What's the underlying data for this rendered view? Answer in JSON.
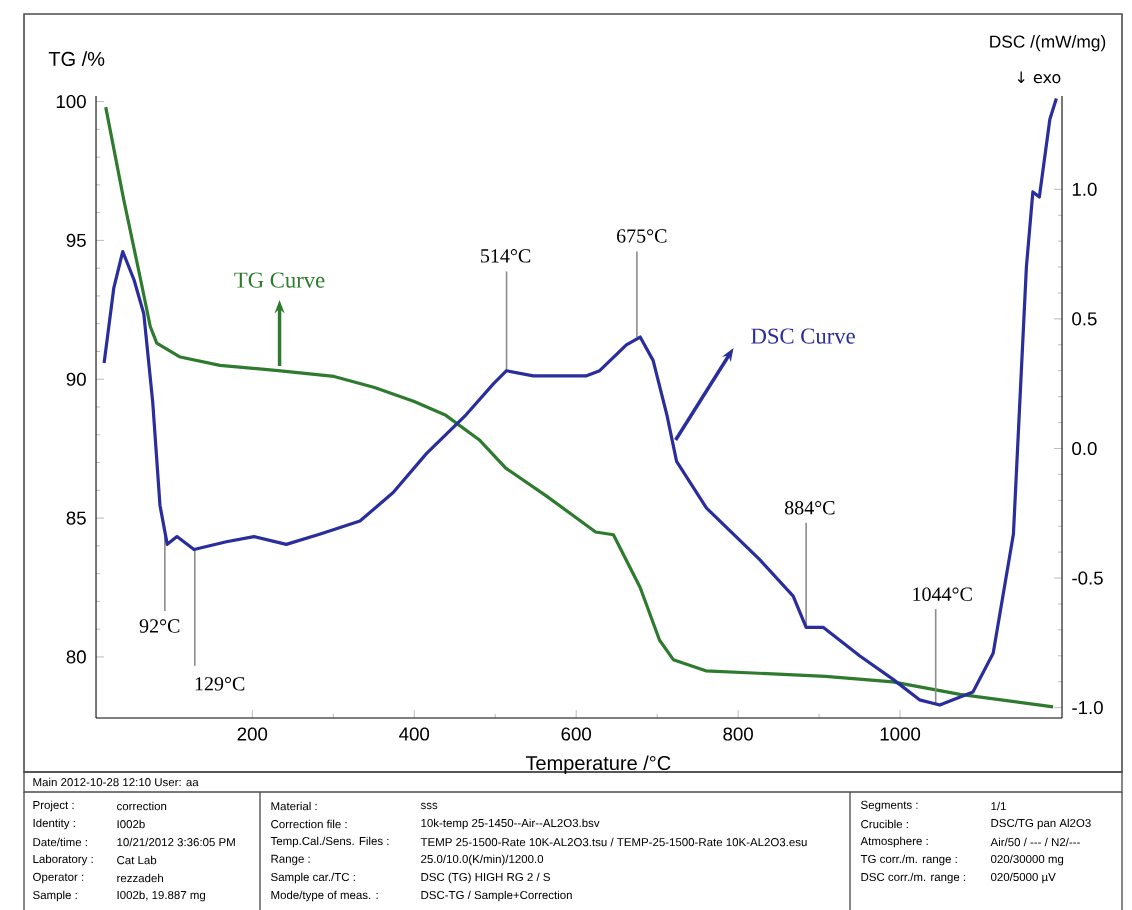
{
  "chart_data": {
    "type": "line",
    "xlabel": "Temperature /°C",
    "ylabel": "TG /%",
    "y2label": "DSC /(mW/mg)",
    "marker": "none",
    "xlim": [
      7,
      1200
    ],
    "ylim": [
      77.8,
      100.2
    ],
    "y2lim": [
      -1.04,
      1.36
    ],
    "xticks": [
      200,
      400,
      600,
      800,
      1000
    ],
    "yticks": [
      80,
      85,
      90,
      95,
      100
    ],
    "y2ticks": [
      {
        "value": -1,
        "label": "-1.0"
      },
      {
        "value": -0.5,
        "label": "-0.5"
      },
      {
        "value": 0,
        "label": "0.0"
      },
      {
        "value": 0.5,
        "label": "0.5"
      },
      {
        "value": 1,
        "label": "1.0"
      }
    ],
    "series": [
      {
        "name": "TG Curve",
        "color": "#2e7a2e",
        "x": [
          19,
          41,
          62,
          74,
          82,
          111,
          160,
          235,
          301,
          351,
          400,
          439,
          481,
          513,
          563,
          624,
          646,
          679,
          703,
          720,
          760,
          908,
          991,
          1074,
          1189
        ],
        "values": [
          99.8,
          96.5,
          93.6,
          91.9,
          91.3,
          90.8,
          90.5,
          90.3,
          90.1,
          89.7,
          89.2,
          88.7,
          87.8,
          86.8,
          85.8,
          84.5,
          84.4,
          82.5,
          80.6,
          79.9,
          79.5,
          79.3,
          79.1,
          78.65,
          78.2
        ]
      },
      {
        "name": "DSC Curve",
        "color": "#2a2d9c",
        "axis": "y2",
        "x": [
          17,
          29,
          40,
          54,
          66,
          77,
          86,
          95,
          107,
          128,
          168,
          202,
          242,
          284,
          333,
          374,
          415,
          464,
          498,
          514,
          547,
          612,
          629,
          662,
          679,
          695,
          712,
          724,
          761,
          827,
          868,
          884,
          905,
          950,
          991,
          1024,
          1049,
          1090,
          1115,
          1140,
          1156,
          1164,
          1172,
          1185,
          1193
        ],
        "values": [
          0.33,
          0.62,
          0.76,
          0.65,
          0.52,
          0.18,
          -0.22,
          -0.37,
          -0.34,
          -0.39,
          -0.36,
          -0.34,
          -0.37,
          -0.33,
          -0.28,
          -0.17,
          -0.02,
          0.13,
          0.25,
          0.3,
          0.28,
          0.28,
          0.3,
          0.4,
          0.43,
          0.34,
          0.13,
          -0.05,
          -0.23,
          -0.43,
          -0.57,
          -0.69,
          -0.69,
          -0.8,
          -0.89,
          -0.97,
          -0.99,
          -0.94,
          -0.79,
          -0.33,
          0.7,
          0.99,
          0.97,
          1.27,
          1.35
        ]
      }
    ],
    "annotations": [
      {
        "text": "514°C",
        "x": 514,
        "y": 90.31
      },
      {
        "text": "675°C",
        "x": 675,
        "y": 91.52
      },
      {
        "text": "884°C",
        "x": 884,
        "y": 81.07
      },
      {
        "text": "1044°C",
        "x": 1044,
        "y": 78.3
      },
      {
        "text": "92°C",
        "x": 92,
        "y": 84.52
      },
      {
        "text": "129°C",
        "x": 129,
        "y": 83.87
      },
      "↓ exo",
      "Main 2012-10-28 12:10 User: aa",
      "Project :",
      "correction",
      "Identity :",
      "I002b",
      "Date/time :",
      "10/21/2012 3:36:05 PM",
      "Laboratory :",
      "Cat Lab",
      "Operator :",
      "rezzadeh",
      "Sample :",
      "I002b, 19.887 mg",
      "Material :",
      "sss",
      "Correction file :",
      "10k-temp 25-1450--Air--AL2O3.bsv",
      "Temp.Cal./Sens. Files :",
      "TEMP 25-1500-Rate 10K-AL2O3.tsu / TEMP-25-1500-Rate 10K-AL2O3.esu",
      "Range :",
      "25.0/10.0(K/min)/1200.0",
      "Sample car./TC :",
      "DSC (TG) HIGH RG 2 / S",
      "Mode/type of meas. :",
      "DSC-TG / Sample+Correction",
      "Segments :",
      "1/1",
      "Crucible :",
      "DSC/TG pan Al2O3",
      "Atmosphere :",
      "Air/50 / --- / N2/---",
      "TG corr./m. range :",
      "020/30000 mg",
      "DSC corr./m. range :",
      "020/5000 µV"
    ]
  }
}
